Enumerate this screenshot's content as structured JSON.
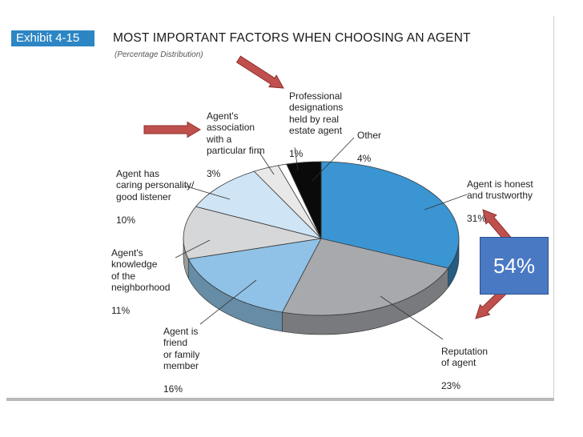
{
  "header": {
    "badge": "Exhibit 4-15",
    "title": "MOST IMPORTANT FACTORS WHEN CHOOSING AN AGENT",
    "subtitle": "(Percentage Distribution)"
  },
  "callout": {
    "combined": "54%"
  },
  "colors": {
    "honest": "#3a95d2",
    "reputation": "#a8a9ad",
    "friend": "#8fc2e6",
    "knowledge": "#d6d7d9",
    "caring": "#cfe4f4",
    "firm": "#e8e8e8",
    "designation": "#ffffff",
    "other": "#0a0a0a",
    "arrow": "#c0504d"
  },
  "chart_data": {
    "type": "pie",
    "title": "MOST IMPORTANT FACTORS WHEN CHOOSING AN AGENT",
    "subtitle": "(Percentage Distribution)",
    "slices": [
      {
        "key": "honest",
        "label": "Agent is honest\nand trustworthy",
        "value": 31,
        "display": "31%"
      },
      {
        "key": "reputation",
        "label": "Reputation\nof agent",
        "value": 23,
        "display": "23%"
      },
      {
        "key": "friend",
        "label": "Agent is\nfriend\nor family\nmember",
        "value": 16,
        "display": "16%"
      },
      {
        "key": "knowledge",
        "label": "Agent's\nknowledge\nof the\nneighborhood",
        "value": 11,
        "display": "11%"
      },
      {
        "key": "caring",
        "label": "Agent has\ncaring personality/\ngood listener",
        "value": 10,
        "display": "10%"
      },
      {
        "key": "firm",
        "label": "Agent's\nassociation\nwith a\nparticular firm",
        "value": 3,
        "display": "3%"
      },
      {
        "key": "designation",
        "label": "Professional\ndesignations\nheld by real\nestate agent",
        "value": 1,
        "display": "1%"
      },
      {
        "key": "other",
        "label": "Other",
        "value": 4,
        "display": "4%"
      }
    ]
  }
}
